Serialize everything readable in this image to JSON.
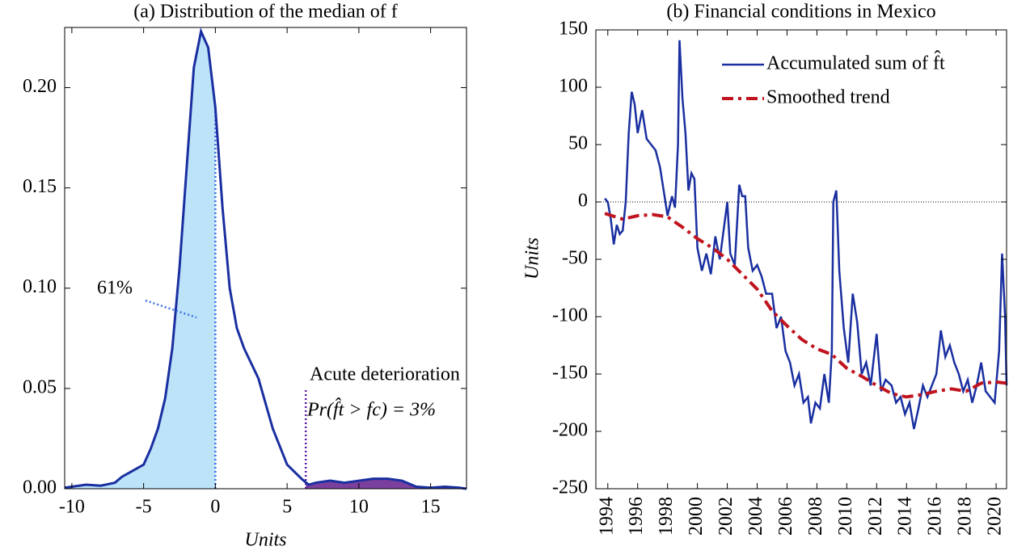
{
  "chart_data": [
    {
      "type": "area",
      "title": "(a) Distribution of the median of f",
      "xlabel": "Units",
      "x": [
        -10.5,
        -9,
        -8,
        -7,
        -6.5,
        -6,
        -5,
        -4.5,
        -4,
        -3.5,
        -3,
        -2.5,
        -2,
        -1.5,
        -1,
        -0.5,
        0,
        0.5,
        1,
        1.5,
        2,
        3,
        4,
        5,
        6,
        6.5,
        7,
        8,
        9,
        10,
        11,
        12,
        13,
        14,
        15,
        16,
        17,
        17.5
      ],
      "values": [
        0.0005,
        0.002,
        0.0015,
        0.003,
        0.006,
        0.008,
        0.012,
        0.02,
        0.03,
        0.045,
        0.07,
        0.11,
        0.16,
        0.21,
        0.228,
        0.22,
        0.19,
        0.14,
        0.1,
        0.08,
        0.07,
        0.055,
        0.03,
        0.012,
        0.005,
        0.002,
        0.003,
        0.004,
        0.003,
        0.004,
        0.005,
        0.005,
        0.004,
        0.001,
        0.0005,
        0.001,
        0.0005,
        0
      ],
      "color": "#1a2fa0",
      "shaded": [
        {
          "from": -10.5,
          "to": 0,
          "color": "#bde3f9"
        },
        {
          "from": 6.3,
          "to": 17.5,
          "color": "#7b3f9e"
        }
      ],
      "reference_lines": [
        {
          "x": 0,
          "color": "#3a6ee8"
        },
        {
          "x": 6.3,
          "y": 0.05,
          "color": "#5a1aa8"
        }
      ],
      "annotations": [
        "61%",
        "Acute deterioration",
        "Pr(f̂t > fc) = 3%"
      ],
      "xlim": [
        -10.5,
        17.5
      ],
      "xticks": [
        -10,
        -5,
        0,
        5,
        10,
        15
      ],
      "ylim": [
        0,
        0.23
      ],
      "yticks": [
        {
          "value": 0,
          "label": "0.00"
        },
        {
          "value": 0.05,
          "label": "0.05"
        },
        {
          "value": 0.1,
          "label": "0.10"
        },
        {
          "value": 0.15,
          "label": "0.15"
        },
        {
          "value": 0.2,
          "label": "0.20"
        }
      ]
    },
    {
      "type": "line",
      "title": "(b) Financial conditions in Mexico",
      "ylabel": "Units",
      "series": [
        {
          "name": "Accumulated sum of f̂t",
          "color": "#1a2fa0",
          "dash": false,
          "x": [
            1993.8,
            1994.0,
            1994.2,
            1994.4,
            1994.6,
            1994.8,
            1995.0,
            1995.2,
            1995.4,
            1995.6,
            1995.8,
            1996.0,
            1996.3,
            1996.6,
            1996.9,
            1997.2,
            1997.5,
            1997.8,
            1998.0,
            1998.3,
            1998.5,
            1998.7,
            1998.8,
            1999.0,
            1999.2,
            1999.4,
            1999.6,
            1999.8,
            2000.0,
            2000.3,
            2000.6,
            2000.9,
            2001.2,
            2001.5,
            2001.8,
            2002.0,
            2002.2,
            2002.5,
            2002.8,
            2003.0,
            2003.2,
            2003.4,
            2003.7,
            2004.0,
            2004.3,
            2004.6,
            2005.0,
            2005.3,
            2005.6,
            2005.9,
            2006.2,
            2006.5,
            2006.8,
            2007.1,
            2007.4,
            2007.6,
            2007.9,
            2008.2,
            2008.5,
            2008.8,
            2009.0,
            2009.1,
            2009.3,
            2009.5,
            2009.8,
            2010.1,
            2010.4,
            2010.7,
            2011.0,
            2011.3,
            2011.6,
            2012.0,
            2012.3,
            2012.6,
            2013.0,
            2013.3,
            2013.6,
            2013.9,
            2014.2,
            2014.5,
            2014.8,
            2015.1,
            2015.4,
            2015.7,
            2016.0,
            2016.3,
            2016.6,
            2016.9,
            2017.2,
            2017.5,
            2017.8,
            2018.1,
            2018.4,
            2018.7,
            2019.0,
            2019.3,
            2019.6,
            2019.9,
            2020.2,
            2020.4,
            2020.6,
            2020.7
          ],
          "values": [
            3,
            0,
            -15,
            -37,
            -20,
            -28,
            -25,
            0,
            60,
            96,
            85,
            60,
            80,
            55,
            50,
            45,
            30,
            5,
            -12,
            5,
            -5,
            50,
            141,
            90,
            60,
            10,
            25,
            20,
            -40,
            -60,
            -45,
            -63,
            -30,
            -50,
            -20,
            0,
            -45,
            -55,
            15,
            5,
            5,
            -40,
            -60,
            -55,
            -65,
            -80,
            -80,
            -110,
            -100,
            -130,
            -140,
            -160,
            -150,
            -175,
            -170,
            -193,
            -175,
            -180,
            -150,
            -175,
            -130,
            0,
            10,
            -60,
            -110,
            -140,
            -80,
            -105,
            -150,
            -140,
            -160,
            -115,
            -165,
            -155,
            -160,
            -175,
            -170,
            -185,
            -175,
            -198,
            -180,
            -160,
            -170,
            -160,
            -150,
            -112,
            -135,
            -125,
            -140,
            -150,
            -165,
            -155,
            -175,
            -160,
            -140,
            -165,
            -170,
            -175,
            -130,
            -45,
            -100,
            -160
          ]
        },
        {
          "name": "Smoothed trend",
          "color": "#c0141e",
          "dash": true,
          "x": [
            1993.8,
            1995,
            1996,
            1997,
            1998,
            1999,
            2000,
            2001,
            2002,
            2003,
            2004,
            2005,
            2006,
            2007,
            2008,
            2009,
            2010,
            2011,
            2012,
            2013,
            2014,
            2015,
            2016,
            2017,
            2018,
            2019,
            2020,
            2020.7
          ],
          "values": [
            -10,
            -15,
            -12,
            -11,
            -13,
            -22,
            -32,
            -40,
            -50,
            -63,
            -76,
            -95,
            -108,
            -120,
            -128,
            -133,
            -145,
            -152,
            -160,
            -167,
            -170,
            -168,
            -165,
            -163,
            -165,
            -158,
            -157,
            -158
          ]
        }
      ],
      "hline": 0,
      "xlim": [
        1993.2,
        2020.7
      ],
      "xticks": [
        1994,
        1996,
        1998,
        2000,
        2002,
        2004,
        2006,
        2008,
        2010,
        2012,
        2014,
        2016,
        2018,
        2020
      ],
      "ylim": [
        -250,
        150
      ],
      "yticks": [
        -250,
        -200,
        -150,
        -100,
        -50,
        0,
        50,
        100,
        150
      ]
    }
  ]
}
